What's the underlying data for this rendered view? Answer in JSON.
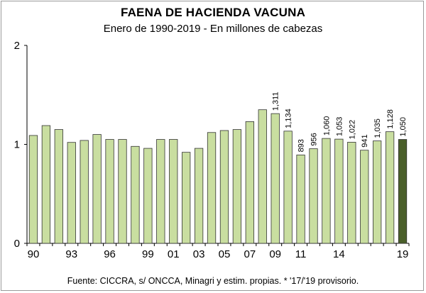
{
  "title": "FAENA DE HACIENDA VACUNA",
  "subtitle": "Enero de 1990-2019 - En millones de cabezas",
  "source": "Fuente: CICCRA, s/ ONCCA, Minagri y estim. propias. * '17/'19 provisorio.",
  "colors": {
    "bar": "#c9dea0",
    "bar_last": "#4a5f2a",
    "bar_stroke": "#333333",
    "axis": "#000000"
  },
  "chart_data": {
    "type": "bar",
    "title": "FAENA DE HACIENDA VACUNA",
    "subtitle": "Enero de 1990-2019 - En millones de cabezas",
    "xlabel": "",
    "ylabel": "",
    "ylim": [
      0,
      2
    ],
    "yticks": [
      "0",
      "1",
      "2"
    ],
    "grid": false,
    "categories": [
      "1990",
      "1991",
      "1992",
      "1993",
      "1994",
      "1995",
      "1996",
      "1997",
      "1998",
      "1999",
      "2000",
      "2001",
      "2002",
      "2003",
      "2004",
      "2005",
      "2006",
      "2007",
      "2008",
      "2009",
      "2010",
      "2011",
      "2012",
      "2013",
      "2014",
      "2015",
      "2016",
      "2017",
      "2018",
      "2019"
    ],
    "x_tick_labels": [
      {
        "index": 0,
        "label": "90"
      },
      {
        "index": 3,
        "label": "93"
      },
      {
        "index": 6,
        "label": "96"
      },
      {
        "index": 9,
        "label": "99"
      },
      {
        "index": 11,
        "label": "01"
      },
      {
        "index": 13,
        "label": "03"
      },
      {
        "index": 15,
        "label": "05"
      },
      {
        "index": 17,
        "label": "07"
      },
      {
        "index": 19,
        "label": "09"
      },
      {
        "index": 21,
        "label": "11"
      },
      {
        "index": 24,
        "label": "14"
      },
      {
        "index": 29,
        "label": "19"
      }
    ],
    "values": [
      1.09,
      1.19,
      1.15,
      1.02,
      1.04,
      1.1,
      1.05,
      1.05,
      0.98,
      0.96,
      1.05,
      1.05,
      0.92,
      0.96,
      1.12,
      1.14,
      1.15,
      1.23,
      1.35,
      1.311,
      1.134,
      0.893,
      0.956,
      1.06,
      1.053,
      1.022,
      0.941,
      1.035,
      1.128,
      1.05
    ],
    "data_labels": [
      {
        "index": 19,
        "label": "1,311"
      },
      {
        "index": 20,
        "label": "1,134"
      },
      {
        "index": 21,
        "label": "893"
      },
      {
        "index": 22,
        "label": "956"
      },
      {
        "index": 23,
        "label": "1,060"
      },
      {
        "index": 24,
        "label": "1,053"
      },
      {
        "index": 25,
        "label": "1,022"
      },
      {
        "index": 26,
        "label": "941"
      },
      {
        "index": 27,
        "label": "1,035"
      },
      {
        "index": 28,
        "label": "1,128"
      },
      {
        "index": 29,
        "label": "1,050"
      }
    ],
    "highlight_index": 29
  }
}
